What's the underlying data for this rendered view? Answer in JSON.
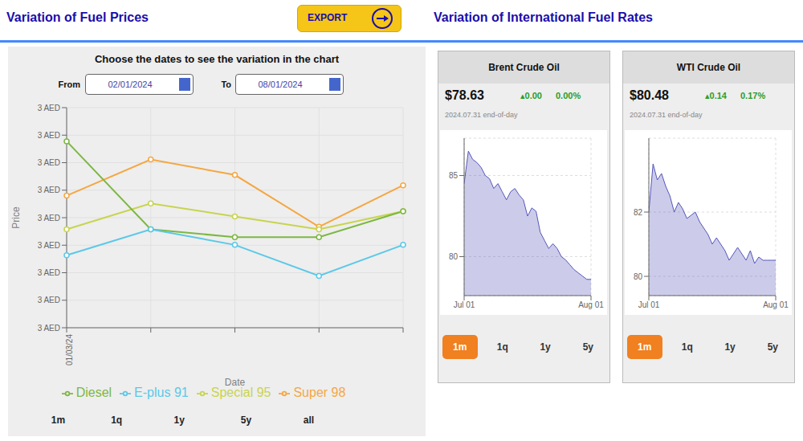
{
  "chart_data": [
    {
      "type": "line",
      "title": "Variation of Fuel Prices",
      "subtitle": "Choose the dates to see the variation in the chart",
      "annotations": [
        "Variation of International Fuel Rates",
        "EXPORT",
        "From",
        "02/01/2024",
        "To",
        "08/01/2024",
        "1m",
        "1q",
        "1y",
        "5y",
        "all"
      ],
      "xlabel": "Date",
      "ylabel": "Price",
      "categories": [
        "01/03/24",
        null,
        null,
        null,
        null
      ],
      "series": [
        {
          "name": "Super 98",
          "color": "#f5a742",
          "values": [
            3.41,
            3.55,
            3.49,
            3.29,
            3.45
          ]
        },
        {
          "name": "Special 95",
          "color": "#c8d44e",
          "values": [
            3.28,
            3.38,
            3.33,
            3.28,
            3.35
          ]
        },
        {
          "name": "Diesel",
          "color": "#7cb843",
          "values": [
            3.62,
            3.28,
            3.25,
            3.25,
            3.35
          ]
        },
        {
          "name": "E-plus 91",
          "color": "#5bc8e8",
          "values": [
            3.18,
            3.28,
            3.22,
            3.1,
            3.22
          ]
        }
      ],
      "ylim": [
        2.9,
        3.75
      ],
      "yticks": [
        {
          "value": 2.9,
          "label": "3 AED"
        },
        {
          "value": 3.00625,
          "label": "3 AED"
        },
        {
          "value": 3.1125,
          "label": "3 AED"
        },
        {
          "value": 3.21875,
          "label": "3 AED"
        },
        {
          "value": 3.325,
          "label": "3 AED"
        },
        {
          "value": 3.43125,
          "label": "3 AED"
        },
        {
          "value": 3.5375,
          "label": "3 AED"
        },
        {
          "value": 3.64375,
          "label": "3 AED"
        },
        {
          "value": 3.75,
          "label": "3 AED"
        }
      ],
      "grid": true,
      "legend": "bottom",
      "marker": "circle"
    },
    {
      "type": "area",
      "title": "Brent Crude Oil",
      "annotations": [
        "$78.63",
        "▴0.00",
        "0.00%",
        "2024.07.31 end-of-day",
        "1m",
        "1q",
        "1y",
        "5y"
      ],
      "x": [
        0,
        1,
        2,
        3,
        4,
        5,
        6,
        7,
        8,
        9,
        10,
        11,
        12,
        13,
        14,
        15,
        16,
        17,
        18,
        19,
        20,
        21,
        22,
        23,
        24,
        25,
        26,
        27,
        28,
        29,
        30
      ],
      "values": [
        84.5,
        86.5,
        86.0,
        85.8,
        85.5,
        85.0,
        84.8,
        84.2,
        84.5,
        84.0,
        83.5,
        84.0,
        84.2,
        83.8,
        83.5,
        82.5,
        83.0,
        82.8,
        81.5,
        81.0,
        80.5,
        80.8,
        80.5,
        80.0,
        79.8,
        79.5,
        79.2,
        79.0,
        78.8,
        78.6,
        78.6
      ],
      "color": "#5555bb",
      "xlim": [
        0,
        30
      ],
      "xticks": [
        {
          "value": 0,
          "label": "Jul 01"
        },
        {
          "value": 30,
          "label": "Aug 01"
        }
      ],
      "ylim": [
        77.6,
        87.3
      ],
      "yticks": [
        80,
        85
      ],
      "grid": true
    },
    {
      "type": "area",
      "title": "WTI Crude Oil",
      "annotations": [
        "$80.48",
        "▴0.14",
        "0.17%",
        "2024.07.31 end-of-day",
        "1m",
        "1q",
        "1y",
        "5y"
      ],
      "x": [
        0,
        1,
        2,
        3,
        4,
        5,
        6,
        7,
        8,
        9,
        10,
        11,
        12,
        13,
        14,
        15,
        16,
        17,
        18,
        19,
        20,
        21,
        22,
        23,
        24,
        25,
        26,
        27,
        28,
        29,
        30
      ],
      "values": [
        82.0,
        83.5,
        83.0,
        83.2,
        82.8,
        82.5,
        82.0,
        82.3,
        82.1,
        81.8,
        81.9,
        82.0,
        81.7,
        81.5,
        81.3,
        81.0,
        81.2,
        81.0,
        80.8,
        80.5,
        80.7,
        80.9,
        80.7,
        80.5,
        80.8,
        80.4,
        80.6,
        80.5,
        80.5,
        80.5,
        80.5
      ],
      "color": "#5555bb",
      "xlim": [
        0,
        30
      ],
      "xticks": [
        {
          "value": 0,
          "label": "Jul 01"
        },
        {
          "value": 30,
          "label": "Aug 01"
        }
      ],
      "ylim": [
        79.4,
        84.3
      ],
      "yticks": [
        80,
        82
      ],
      "grid": true
    }
  ]
}
